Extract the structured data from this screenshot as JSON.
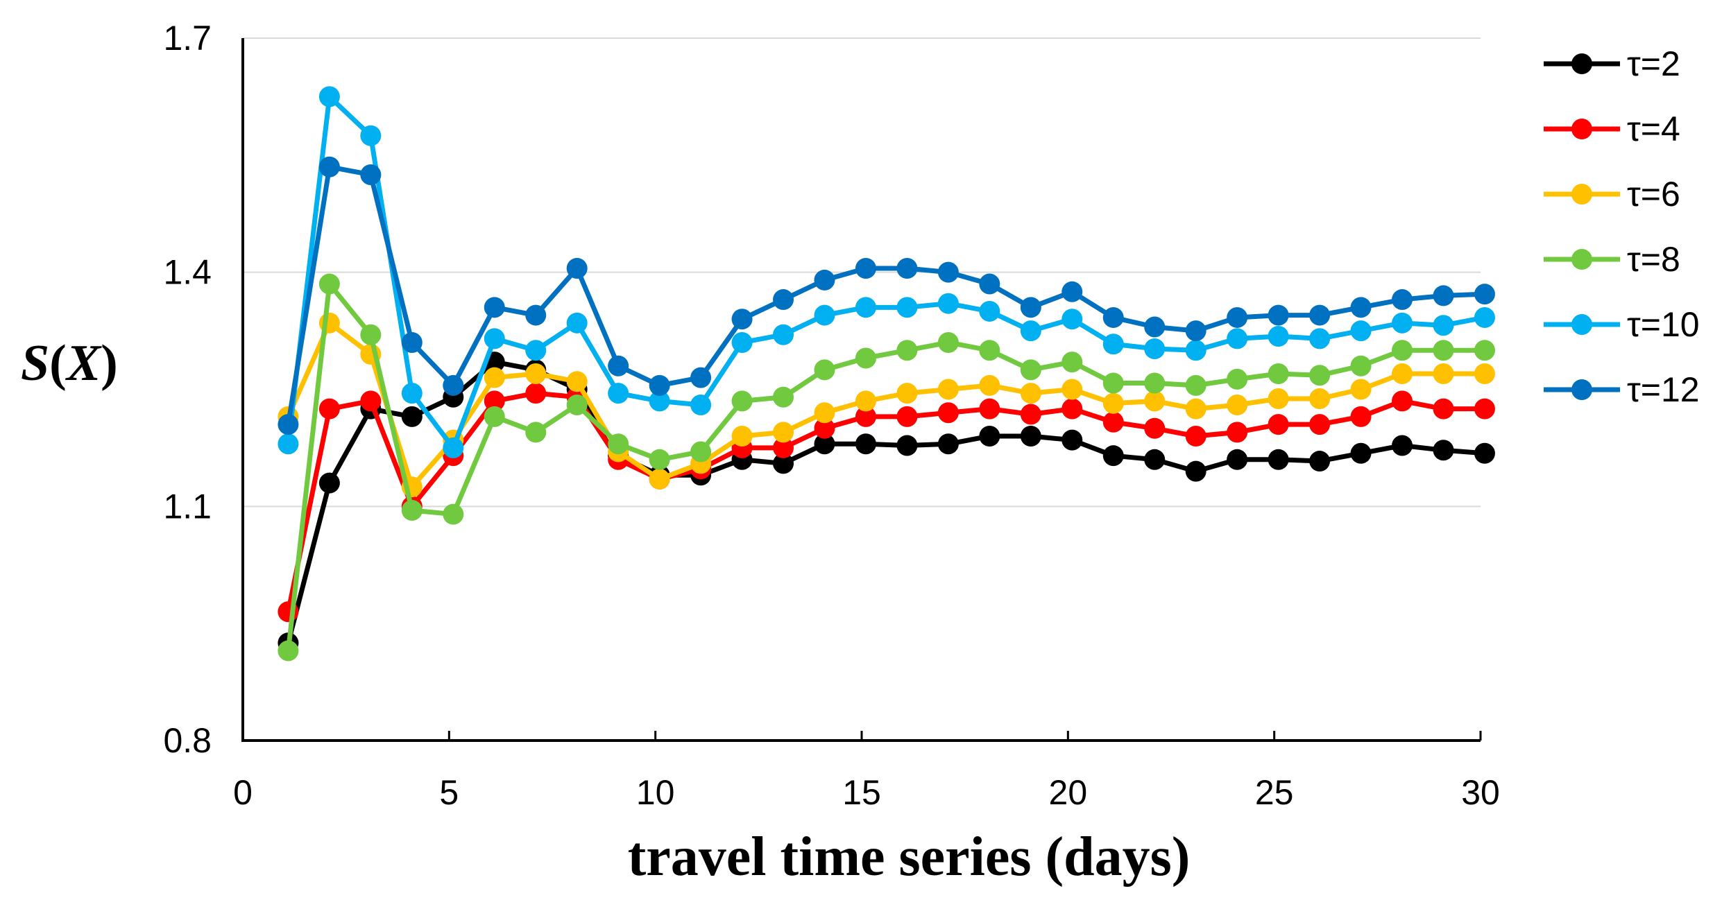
{
  "chart_data": {
    "type": "line",
    "title": "",
    "xlabel": "travel time series (days)",
    "ylabel": "S(X)",
    "ylabel_parts": {
      "left": "S",
      "mid": "(",
      "var": "X",
      "right": ")"
    },
    "xlim": [
      0,
      30
    ],
    "ylim": [
      0.8,
      1.7
    ],
    "xticks": [
      "0",
      "5",
      "10",
      "15",
      "20",
      "25",
      "30"
    ],
    "yticks": [
      "0.8",
      "1.1",
      "1.4",
      "1.7"
    ],
    "grid": "horizontal",
    "legend_position": "right",
    "x": [
      1,
      2,
      3,
      4,
      5,
      6,
      7,
      8,
      9,
      10,
      11,
      12,
      13,
      14,
      15,
      16,
      17,
      18,
      19,
      20,
      21,
      22,
      23,
      24,
      25,
      26,
      27,
      28,
      29,
      30
    ],
    "series": [
      {
        "name": "τ=2",
        "color": "#000000",
        "values": [
          0.925,
          1.13,
          1.225,
          1.215,
          1.24,
          1.285,
          1.275,
          1.25,
          1.165,
          1.14,
          1.14,
          1.16,
          1.155,
          1.18,
          1.18,
          1.178,
          1.18,
          1.19,
          1.19,
          1.185,
          1.165,
          1.16,
          1.145,
          1.16,
          1.16,
          1.158,
          1.168,
          1.178,
          1.172,
          1.168
        ]
      },
      {
        "name": "τ=4",
        "color": "#ff0000",
        "values": [
          0.965,
          1.225,
          1.235,
          1.1,
          1.165,
          1.235,
          1.245,
          1.24,
          1.16,
          1.135,
          1.148,
          1.175,
          1.175,
          1.2,
          1.215,
          1.215,
          1.22,
          1.225,
          1.218,
          1.225,
          1.208,
          1.2,
          1.19,
          1.195,
          1.205,
          1.205,
          1.215,
          1.235,
          1.225,
          1.225
        ]
      },
      {
        "name": "τ=6",
        "color": "#ffc000",
        "values": [
          1.215,
          1.335,
          1.295,
          1.125,
          1.185,
          1.265,
          1.27,
          1.26,
          1.17,
          1.135,
          1.155,
          1.19,
          1.195,
          1.22,
          1.235,
          1.245,
          1.25,
          1.255,
          1.245,
          1.25,
          1.232,
          1.235,
          1.225,
          1.23,
          1.238,
          1.238,
          1.25,
          1.27,
          1.27,
          1.27
        ]
      },
      {
        "name": "τ=8",
        "color": "#70c93f",
        "values": [
          0.915,
          1.385,
          1.32,
          1.095,
          1.09,
          1.215,
          1.195,
          1.23,
          1.18,
          1.16,
          1.17,
          1.235,
          1.24,
          1.275,
          1.29,
          1.3,
          1.31,
          1.3,
          1.275,
          1.285,
          1.258,
          1.258,
          1.255,
          1.263,
          1.27,
          1.268,
          1.28,
          1.3,
          1.3,
          1.3
        ]
      },
      {
        "name": "τ=10",
        "color": "#00b0f0",
        "values": [
          1.18,
          1.625,
          1.575,
          1.245,
          1.175,
          1.315,
          1.3,
          1.335,
          1.245,
          1.235,
          1.23,
          1.31,
          1.32,
          1.345,
          1.355,
          1.355,
          1.36,
          1.35,
          1.325,
          1.34,
          1.308,
          1.302,
          1.3,
          1.315,
          1.318,
          1.315,
          1.325,
          1.335,
          1.332,
          1.342
        ]
      },
      {
        "name": "τ=12",
        "color": "#0070c0",
        "values": [
          1.205,
          1.535,
          1.525,
          1.31,
          1.255,
          1.355,
          1.345,
          1.405,
          1.28,
          1.255,
          1.265,
          1.34,
          1.365,
          1.39,
          1.405,
          1.405,
          1.4,
          1.385,
          1.355,
          1.375,
          1.342,
          1.33,
          1.325,
          1.342,
          1.345,
          1.345,
          1.355,
          1.365,
          1.37,
          1.372
        ]
      }
    ]
  }
}
